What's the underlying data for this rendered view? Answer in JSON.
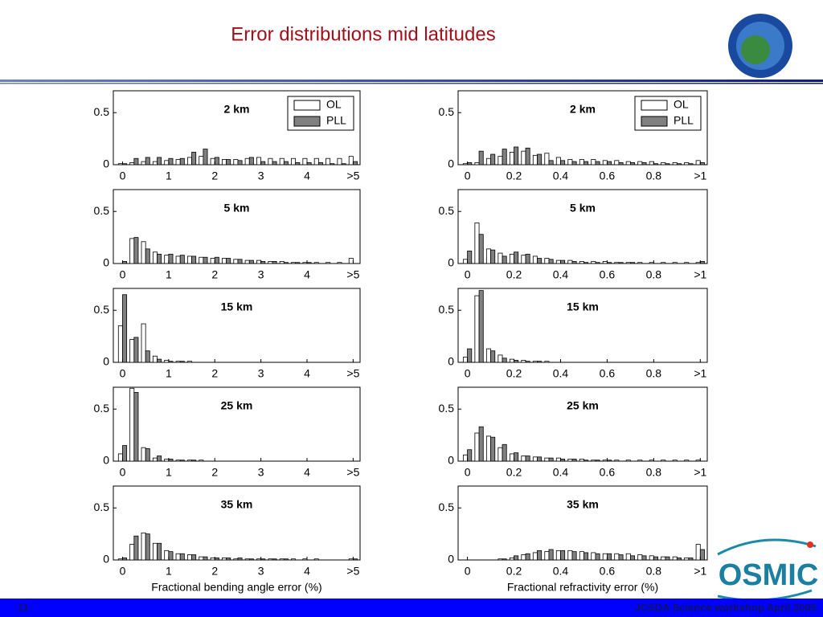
{
  "title": "Error distributions mid latitudes",
  "footer": {
    "page": "11",
    "text": "JCSDA Science workshop April 2005"
  },
  "logo": "OSMIC",
  "chart_data": [
    {
      "type": "bar",
      "annotation": "2 km",
      "legend": "upper right",
      "x": [
        0,
        0.25,
        0.5,
        0.75,
        1,
        1.25,
        1.5,
        1.75,
        2,
        2.25,
        2.5,
        2.75,
        3,
        3.25,
        3.5,
        3.75,
        4,
        4.25,
        4.5,
        4.75,
        5
      ],
      "xlim": [
        -0.2,
        5.15
      ],
      "xticks": [
        0,
        1,
        2,
        3,
        4,
        {
          "value": 5,
          "label": ">5"
        }
      ],
      "ylim": [
        0,
        0.71
      ],
      "yticks": [
        0,
        0.5
      ],
      "series": [
        {
          "name": "OL",
          "color": "#ffffff",
          "values": [
            0.01,
            0.02,
            0.03,
            0.03,
            0.04,
            0.05,
            0.07,
            0.08,
            0.06,
            0.05,
            0.05,
            0.06,
            0.07,
            0.06,
            0.06,
            0.06,
            0.06,
            0.06,
            0.06,
            0.06,
            0.08
          ]
        },
        {
          "name": "PLL",
          "color": "#808080",
          "values": [
            0.01,
            0.06,
            0.07,
            0.07,
            0.06,
            0.06,
            0.12,
            0.15,
            0.07,
            0.05,
            0.04,
            0.07,
            0.03,
            0.03,
            0.03,
            0.02,
            0.02,
            0.02,
            0.01,
            0.01,
            0.03
          ]
        }
      ]
    },
    {
      "type": "bar",
      "annotation": "2 km",
      "legend": "upper right",
      "x": [
        0,
        0.05,
        0.1,
        0.15,
        0.2,
        0.25,
        0.3,
        0.35,
        0.4,
        0.45,
        0.5,
        0.55,
        0.6,
        0.65,
        0.7,
        0.75,
        0.8,
        0.85,
        0.9,
        0.95,
        1
      ],
      "xlim": [
        -0.04,
        1.03
      ],
      "xticks": [
        0,
        0.2,
        0.4,
        0.6,
        0.8,
        {
          "value": 1,
          "label": ">1"
        }
      ],
      "ylim": [
        0,
        0.71
      ],
      "yticks": [
        0,
        0.5
      ],
      "series": [
        {
          "name": "OL",
          "color": "#ffffff",
          "values": [
            0.01,
            0.02,
            0.06,
            0.08,
            0.12,
            0.13,
            0.09,
            0.11,
            0.07,
            0.05,
            0.05,
            0.05,
            0.04,
            0.04,
            0.03,
            0.03,
            0.03,
            0.02,
            0.02,
            0.02,
            0.04
          ]
        },
        {
          "name": "PLL",
          "color": "#808080",
          "values": [
            0.02,
            0.13,
            0.1,
            0.15,
            0.17,
            0.16,
            0.1,
            0.04,
            0.04,
            0.03,
            0.03,
            0.03,
            0.03,
            0.02,
            0.02,
            0.02,
            0.01,
            0.01,
            0.01,
            0.01,
            0.02
          ]
        }
      ]
    },
    {
      "type": "bar",
      "annotation": "5 km",
      "x": [
        0,
        0.25,
        0.5,
        0.75,
        1,
        1.25,
        1.5,
        1.75,
        2,
        2.25,
        2.5,
        2.75,
        3,
        3.25,
        3.5,
        3.75,
        4,
        4.25,
        4.5,
        4.75,
        5
      ],
      "xlim": [
        -0.2,
        5.15
      ],
      "xticks": [
        0,
        1,
        2,
        3,
        4,
        {
          "value": 5,
          "label": ">5"
        }
      ],
      "ylim": [
        0,
        0.71
      ],
      "yticks": [
        0,
        0.5
      ],
      "series": [
        {
          "name": "OL",
          "color": "#ffffff",
          "values": [
            0,
            0.24,
            0.21,
            0.11,
            0.08,
            0.07,
            0.07,
            0.06,
            0.05,
            0.05,
            0.04,
            0.03,
            0.03,
            0.02,
            0.02,
            0.01,
            0.01,
            0.01,
            0.01,
            0.01,
            0.05
          ]
        },
        {
          "name": "PLL",
          "color": "#808080",
          "values": [
            0.02,
            0.25,
            0.14,
            0.09,
            0.09,
            0.08,
            0.07,
            0.06,
            0.06,
            0.05,
            0.04,
            0.03,
            0.02,
            0.02,
            0.01,
            0.01,
            0.01,
            0,
            0,
            0,
            0
          ]
        }
      ]
    },
    {
      "type": "bar",
      "annotation": "5 km",
      "x": [
        0,
        0.05,
        0.1,
        0.15,
        0.2,
        0.25,
        0.3,
        0.35,
        0.4,
        0.45,
        0.5,
        0.55,
        0.6,
        0.65,
        0.7,
        0.75,
        0.8,
        0.85,
        0.9,
        0.95,
        1
      ],
      "xlim": [
        -0.04,
        1.03
      ],
      "xticks": [
        0,
        0.2,
        0.4,
        0.6,
        0.8,
        {
          "value": 1,
          "label": ">1"
        }
      ],
      "ylim": [
        0,
        0.71
      ],
      "yticks": [
        0,
        0.5
      ],
      "series": [
        {
          "name": "OL",
          "color": "#ffffff",
          "values": [
            0.04,
            0.39,
            0.14,
            0.1,
            0.09,
            0.08,
            0.07,
            0.05,
            0.03,
            0.03,
            0.02,
            0.02,
            0.02,
            0.01,
            0.01,
            0.01,
            0.01,
            0.01,
            0.01,
            0.01,
            0.01
          ]
        },
        {
          "name": "PLL",
          "color": "#808080",
          "values": [
            0.12,
            0.28,
            0.13,
            0.07,
            0.11,
            0.09,
            0.05,
            0.04,
            0.03,
            0.02,
            0.01,
            0.01,
            0.01,
            0.01,
            0.01,
            0,
            0,
            0,
            0,
            0,
            0.02
          ]
        }
      ]
    },
    {
      "type": "bar",
      "annotation": "15 km",
      "x": [
        0,
        0.25,
        0.5,
        0.75,
        1,
        1.25,
        1.5,
        1.75,
        2,
        2.25,
        2.5,
        2.75,
        3,
        3.25,
        3.5,
        3.75,
        4,
        4.25,
        4.5,
        4.75,
        5
      ],
      "xlim": [
        -0.2,
        5.15
      ],
      "xticks": [
        0,
        1,
        2,
        3,
        4,
        {
          "value": 5,
          "label": ">5"
        }
      ],
      "ylim": [
        0,
        0.71
      ],
      "yticks": [
        0,
        0.5
      ],
      "series": [
        {
          "name": "OL",
          "color": "#ffffff",
          "values": [
            0.35,
            0.22,
            0.37,
            0.06,
            0.02,
            0.01,
            0.01,
            0,
            0,
            0,
            0,
            0,
            0,
            0,
            0,
            0,
            0,
            0,
            0,
            0,
            0
          ]
        },
        {
          "name": "PLL",
          "color": "#808080",
          "values": [
            0.65,
            0.24,
            0.11,
            0.03,
            0.01,
            0.01,
            0,
            0,
            0,
            0,
            0,
            0,
            0,
            0,
            0,
            0,
            0,
            0,
            0,
            0,
            0
          ]
        }
      ]
    },
    {
      "type": "bar",
      "annotation": "15 km",
      "x": [
        0,
        0.05,
        0.1,
        0.15,
        0.2,
        0.25,
        0.3,
        0.35,
        0.4,
        0.45,
        0.5,
        0.55,
        0.6,
        0.65,
        0.7,
        0.75,
        0.8,
        0.85,
        0.9,
        0.95,
        1
      ],
      "xlim": [
        -0.04,
        1.03
      ],
      "xticks": [
        0,
        0.2,
        0.4,
        0.6,
        0.8,
        {
          "value": 1,
          "label": ">1"
        }
      ],
      "ylim": [
        0,
        0.71
      ],
      "yticks": [
        0,
        0.5
      ],
      "series": [
        {
          "name": "OL",
          "color": "#ffffff",
          "values": [
            0.05,
            0.64,
            0.13,
            0.07,
            0.03,
            0.02,
            0.01,
            0.01,
            0,
            0,
            0,
            0,
            0,
            0,
            0,
            0,
            0,
            0,
            0,
            0,
            0
          ]
        },
        {
          "name": "PLL",
          "color": "#808080",
          "values": [
            0.13,
            0.69,
            0.11,
            0.04,
            0.02,
            0.01,
            0.01,
            0,
            0,
            0,
            0,
            0,
            0,
            0,
            0,
            0,
            0,
            0,
            0,
            0,
            0
          ]
        }
      ]
    },
    {
      "type": "bar",
      "annotation": "25 km",
      "x": [
        0,
        0.25,
        0.5,
        0.75,
        1,
        1.25,
        1.5,
        1.75,
        2,
        2.25,
        2.5,
        2.75,
        3,
        3.25,
        3.5,
        3.75,
        4,
        4.25,
        4.5,
        4.75,
        5
      ],
      "xlim": [
        -0.2,
        5.15
      ],
      "xticks": [
        0,
        1,
        2,
        3,
        4,
        {
          "value": 5,
          "label": ">5"
        }
      ],
      "ylim": [
        0,
        0.71
      ],
      "yticks": [
        0,
        0.5
      ],
      "series": [
        {
          "name": "OL",
          "color": "#ffffff",
          "values": [
            0.07,
            0.7,
            0.13,
            0.03,
            0.02,
            0.01,
            0.01,
            0.01,
            0,
            0,
            0,
            0,
            0,
            0,
            0,
            0,
            0,
            0,
            0,
            0,
            0
          ]
        },
        {
          "name": "PLL",
          "color": "#808080",
          "values": [
            0.15,
            0.66,
            0.12,
            0.05,
            0.02,
            0.01,
            0.01,
            0,
            0,
            0,
            0,
            0,
            0,
            0,
            0,
            0,
            0,
            0,
            0,
            0,
            0
          ]
        }
      ]
    },
    {
      "type": "bar",
      "annotation": "25 km",
      "x": [
        0,
        0.05,
        0.1,
        0.15,
        0.2,
        0.25,
        0.3,
        0.35,
        0.4,
        0.45,
        0.5,
        0.55,
        0.6,
        0.65,
        0.7,
        0.75,
        0.8,
        0.85,
        0.9,
        0.95,
        1
      ],
      "xlim": [
        -0.04,
        1.03
      ],
      "xticks": [
        0,
        0.2,
        0.4,
        0.6,
        0.8,
        {
          "value": 1,
          "label": ">1"
        }
      ],
      "ylim": [
        0,
        0.71
      ],
      "yticks": [
        0,
        0.5
      ],
      "series": [
        {
          "name": "OL",
          "color": "#ffffff",
          "values": [
            0.06,
            0.27,
            0.24,
            0.13,
            0.07,
            0.05,
            0.04,
            0.03,
            0.03,
            0.02,
            0.02,
            0.01,
            0.01,
            0.01,
            0.01,
            0.01,
            0.01,
            0.01,
            0.01,
            0.01,
            0.01
          ]
        },
        {
          "name": "PLL",
          "color": "#808080",
          "values": [
            0.11,
            0.33,
            0.23,
            0.16,
            0.08,
            0.05,
            0.04,
            0.03,
            0.02,
            0.02,
            0.01,
            0.01,
            0.01,
            0,
            0,
            0,
            0,
            0,
            0,
            0,
            0
          ]
        }
      ]
    },
    {
      "type": "bar",
      "annotation": "35 km",
      "xlabel": "Fractional bending angle error (%)",
      "x": [
        0,
        0.25,
        0.5,
        0.75,
        1,
        1.25,
        1.5,
        1.75,
        2,
        2.25,
        2.5,
        2.75,
        3,
        3.25,
        3.5,
        3.75,
        4,
        4.25,
        4.5,
        4.75,
        5
      ],
      "xlim": [
        -0.2,
        5.15
      ],
      "xticks": [
        0,
        1,
        2,
        3,
        4,
        {
          "value": 5,
          "label": ">5"
        }
      ],
      "ylim": [
        0,
        0.71
      ],
      "yticks": [
        0,
        0.5
      ],
      "series": [
        {
          "name": "OL",
          "color": "#ffffff",
          "values": [
            0.01,
            0.15,
            0.26,
            0.16,
            0.09,
            0.06,
            0.05,
            0.03,
            0.02,
            0.02,
            0.01,
            0.01,
            0.01,
            0.01,
            0.01,
            0.01,
            0.01,
            0.01,
            0,
            0,
            0.01
          ]
        },
        {
          "name": "PLL",
          "color": "#808080",
          "values": [
            0.02,
            0.23,
            0.25,
            0.16,
            0.08,
            0.06,
            0.05,
            0.03,
            0.02,
            0.02,
            0.02,
            0.01,
            0.01,
            0.01,
            0.01,
            0,
            0,
            0,
            0,
            0,
            0.01
          ]
        }
      ]
    },
    {
      "type": "bar",
      "annotation": "35 km",
      "xlabel": "Fractional refractivity error (%)",
      "x": [
        0,
        0.05,
        0.1,
        0.15,
        0.2,
        0.25,
        0.3,
        0.35,
        0.4,
        0.45,
        0.5,
        0.55,
        0.6,
        0.65,
        0.7,
        0.75,
        0.8,
        0.85,
        0.9,
        0.95,
        1
      ],
      "xlim": [
        -0.04,
        1.03
      ],
      "xticks": [
        0,
        0.2,
        0.4,
        0.6,
        0.8,
        {
          "value": 1,
          "label": ">1"
        }
      ],
      "ylim": [
        0,
        0.71
      ],
      "yticks": [
        0,
        0.5
      ],
      "series": [
        {
          "name": "OL",
          "color": "#ffffff",
          "values": [
            0,
            0,
            0,
            0.01,
            0.02,
            0.05,
            0.07,
            0.08,
            0.09,
            0.09,
            0.08,
            0.07,
            0.06,
            0.06,
            0.06,
            0.05,
            0.04,
            0.03,
            0.03,
            0.02,
            0.15
          ]
        },
        {
          "name": "PLL",
          "color": "#808080",
          "values": [
            0,
            0,
            0,
            0.01,
            0.04,
            0.06,
            0.09,
            0.1,
            0.09,
            0.08,
            0.07,
            0.06,
            0.06,
            0.05,
            0.04,
            0.04,
            0.03,
            0.03,
            0.02,
            0.02,
            0.1
          ]
        }
      ]
    }
  ]
}
